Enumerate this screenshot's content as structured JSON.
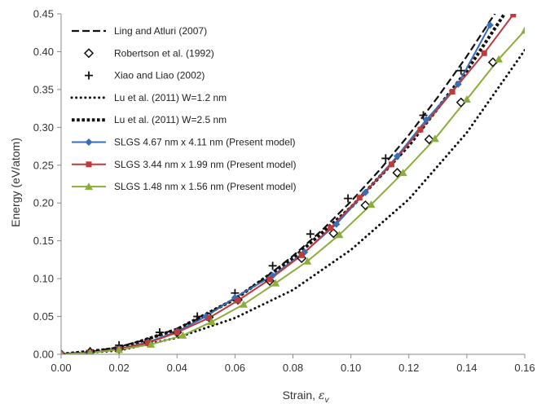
{
  "chart_data": {
    "type": "line",
    "xlabel": "Strain, ",
    "xlabel_symbol": "ε",
    "xlabel_sub": "v",
    "ylabel": "Energy (eV/atom)",
    "xlim": [
      0,
      0.16
    ],
    "ylim": [
      0,
      0.45
    ],
    "x_ticks": [
      "0.00",
      "0.02",
      "0.04",
      "0.06",
      "0.08",
      "0.10",
      "0.12",
      "0.14",
      "0.16"
    ],
    "y_ticks": [
      "0.00",
      "0.05",
      "0.10",
      "0.15",
      "0.20",
      "0.25",
      "0.30",
      "0.35",
      "0.40",
      "0.45"
    ],
    "grid": false,
    "legend_position": "top-left",
    "series": [
      {
        "name": "Ling and Atluri (2007)",
        "style": "dashed",
        "color": "#111111",
        "points": [
          [
            0,
            0
          ],
          [
            0.01,
            0.003
          ],
          [
            0.02,
            0.01
          ],
          [
            0.03,
            0.02
          ],
          [
            0.04,
            0.034
          ],
          [
            0.05,
            0.052
          ],
          [
            0.06,
            0.074
          ],
          [
            0.07,
            0.1
          ],
          [
            0.08,
            0.13
          ],
          [
            0.09,
            0.164
          ],
          [
            0.1,
            0.202
          ],
          [
            0.11,
            0.244
          ],
          [
            0.12,
            0.29
          ],
          [
            0.13,
            0.34
          ],
          [
            0.14,
            0.394
          ],
          [
            0.15,
            0.452
          ]
        ]
      },
      {
        "name": "Robertson et al. (1992)",
        "style": "diamond-markers",
        "color": "#111111",
        "points": [
          [
            0,
            0
          ],
          [
            0.01,
            0.003
          ],
          [
            0.02,
            0.007
          ],
          [
            0.03,
            0.016
          ],
          [
            0.04,
            0.029
          ],
          [
            0.051,
            0.049
          ],
          [
            0.061,
            0.072
          ],
          [
            0.072,
            0.097
          ],
          [
            0.083,
            0.127
          ],
          [
            0.094,
            0.16
          ],
          [
            0.105,
            0.197
          ],
          [
            0.116,
            0.24
          ],
          [
            0.127,
            0.284
          ],
          [
            0.138,
            0.333
          ],
          [
            0.149,
            0.386
          ]
        ]
      },
      {
        "name": "Xiao and Liao (2002)",
        "style": "plus-markers",
        "color": "#111111",
        "points": [
          [
            0,
            0
          ],
          [
            0.01,
            0.004
          ],
          [
            0.02,
            0.012
          ],
          [
            0.034,
            0.029
          ],
          [
            0.047,
            0.05
          ],
          [
            0.06,
            0.081
          ],
          [
            0.073,
            0.117
          ],
          [
            0.086,
            0.159
          ],
          [
            0.099,
            0.206
          ],
          [
            0.112,
            0.259
          ],
          [
            0.125,
            0.316
          ],
          [
            0.138,
            0.375
          ]
        ]
      },
      {
        "name": "Lu et al. (2011) W=1.2 nm",
        "style": "dotted",
        "color": "#111111",
        "points": [
          [
            0,
            0
          ],
          [
            0.02,
            0.005
          ],
          [
            0.04,
            0.022
          ],
          [
            0.06,
            0.048
          ],
          [
            0.08,
            0.085
          ],
          [
            0.1,
            0.138
          ],
          [
            0.12,
            0.205
          ],
          [
            0.14,
            0.293
          ],
          [
            0.16,
            0.402
          ]
        ]
      },
      {
        "name": "Lu et al. (2011) W=2.5 nm",
        "style": "dotted-heavy",
        "color": "#111111",
        "points": [
          [
            0,
            0
          ],
          [
            0.02,
            0.008
          ],
          [
            0.04,
            0.033
          ],
          [
            0.06,
            0.073
          ],
          [
            0.08,
            0.127
          ],
          [
            0.1,
            0.194
          ],
          [
            0.12,
            0.276
          ],
          [
            0.14,
            0.375
          ],
          [
            0.153,
            0.45
          ]
        ]
      },
      {
        "name": "SLGS 4.67 nm x 4.11 nm (Present model)",
        "style": "solid-diamond",
        "color": "#3a6fb5",
        "points": [
          [
            0,
            0
          ],
          [
            0.01,
            0.002
          ],
          [
            0.02,
            0.007
          ],
          [
            0.03,
            0.016
          ],
          [
            0.04,
            0.03
          ],
          [
            0.05,
            0.05
          ],
          [
            0.06,
            0.075
          ],
          [
            0.073,
            0.104
          ],
          [
            0.084,
            0.135
          ],
          [
            0.095,
            0.172
          ],
          [
            0.105,
            0.214
          ],
          [
            0.116,
            0.262
          ],
          [
            0.126,
            0.31
          ],
          [
            0.137,
            0.357
          ],
          [
            0.148,
            0.435
          ]
        ]
      },
      {
        "name": "SLGS 3.44 nm x 1.99 nm (Present model)",
        "style": "solid-square",
        "color": "#c0393b",
        "points": [
          [
            0,
            0
          ],
          [
            0.01,
            0.002
          ],
          [
            0.02,
            0.007
          ],
          [
            0.03,
            0.015
          ],
          [
            0.04,
            0.029
          ],
          [
            0.051,
            0.048
          ],
          [
            0.061,
            0.071
          ],
          [
            0.072,
            0.099
          ],
          [
            0.083,
            0.131
          ],
          [
            0.093,
            0.167
          ],
          [
            0.103,
            0.207
          ],
          [
            0.114,
            0.251
          ],
          [
            0.124,
            0.297
          ],
          [
            0.135,
            0.347
          ],
          [
            0.146,
            0.398
          ],
          [
            0.156,
            0.449
          ]
        ]
      },
      {
        "name": "SLGS 1.48 nm x 1.56 nm (Present model)",
        "style": "solid-triangle",
        "color": "#8cad3c",
        "points": [
          [
            0,
            0
          ],
          [
            0.01,
            0.002
          ],
          [
            0.02,
            0.006
          ],
          [
            0.031,
            0.013
          ],
          [
            0.042,
            0.025
          ],
          [
            0.052,
            0.043
          ],
          [
            0.063,
            0.066
          ],
          [
            0.074,
            0.094
          ],
          [
            0.085,
            0.123
          ],
          [
            0.096,
            0.158
          ],
          [
            0.107,
            0.198
          ],
          [
            0.118,
            0.24
          ],
          [
            0.129,
            0.285
          ],
          [
            0.14,
            0.337
          ],
          [
            0.151,
            0.39
          ],
          [
            0.16,
            0.428
          ]
        ]
      }
    ]
  }
}
